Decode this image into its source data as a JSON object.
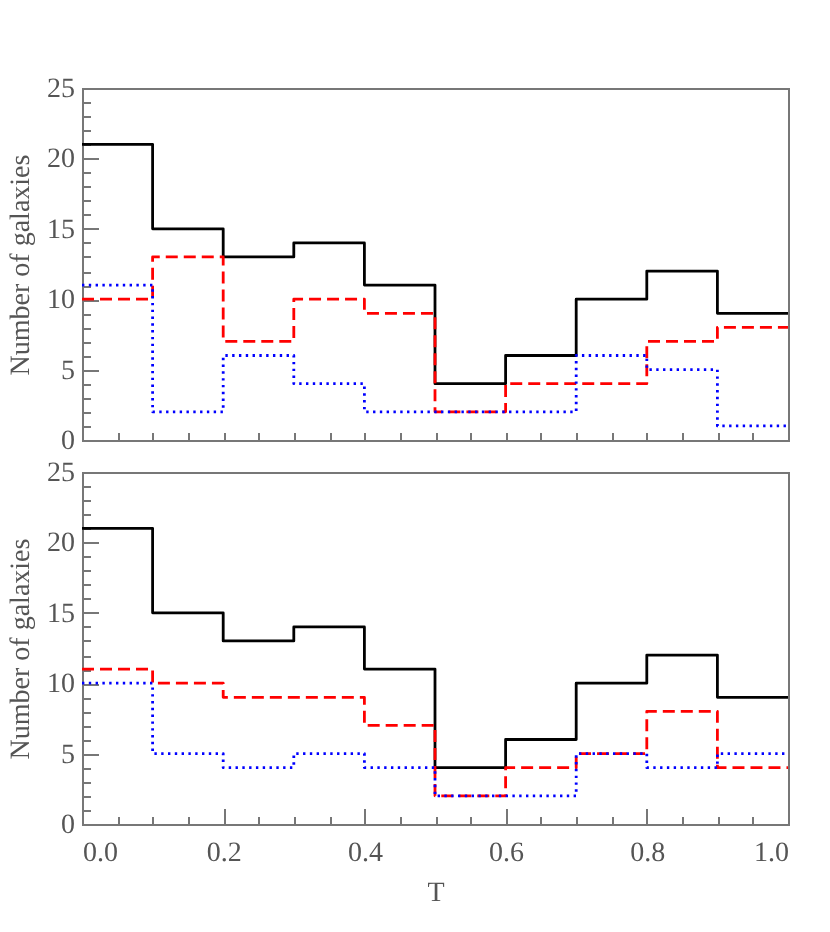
{
  "chart_data": [
    {
      "type": "histogram",
      "ylabel": "Number of galaxies",
      "bins": [
        0,
        0.1,
        0.2,
        0.3,
        0.4,
        0.5,
        0.6,
        0.7,
        0.8,
        0.9,
        1.0
      ],
      "series": [
        {
          "color": "#000000",
          "line_style": "solid",
          "values": [
            21,
            15,
            13,
            14,
            11,
            4,
            6,
            10,
            12,
            9
          ]
        },
        {
          "color": "#ff0000",
          "line_style": "dashed",
          "values": [
            10,
            13,
            7,
            10,
            9,
            2,
            4,
            4,
            7,
            8
          ]
        },
        {
          "color": "#0000ff",
          "line_style": "dotted",
          "values": [
            11,
            2,
            6,
            4,
            2,
            2,
            2,
            6,
            5,
            1
          ]
        }
      ],
      "xlim": [
        0,
        1
      ],
      "ylim": [
        0,
        25
      ],
      "xticks": [
        {
          "value": 0,
          "label": null
        },
        {
          "value": 0.05,
          "label": null
        },
        {
          "value": 0.1,
          "label": null
        },
        {
          "value": 0.15,
          "label": null
        },
        {
          "value": 0.2,
          "label": null
        },
        {
          "value": 0.25,
          "label": null
        },
        {
          "value": 0.3,
          "label": null
        },
        {
          "value": 0.35,
          "label": null
        },
        {
          "value": 0.4,
          "label": null
        },
        {
          "value": 0.45,
          "label": null
        },
        {
          "value": 0.5,
          "label": null
        },
        {
          "value": 0.55,
          "label": null
        },
        {
          "value": 0.6,
          "label": null
        },
        {
          "value": 0.65,
          "label": null
        },
        {
          "value": 0.7,
          "label": null
        },
        {
          "value": 0.75,
          "label": null
        },
        {
          "value": 0.8,
          "label": null
        },
        {
          "value": 0.85,
          "label": null
        },
        {
          "value": 0.9,
          "label": null
        },
        {
          "value": 0.95,
          "label": null
        },
        {
          "value": 1,
          "label": null
        }
      ],
      "yticks": [
        0,
        {
          "value": 1,
          "label": null
        },
        {
          "value": 2,
          "label": null
        },
        {
          "value": 3,
          "label": null
        },
        {
          "value": 4,
          "label": null
        },
        5,
        {
          "value": 6,
          "label": null
        },
        {
          "value": 7,
          "label": null
        },
        {
          "value": 8,
          "label": null
        },
        {
          "value": 9,
          "label": null
        },
        10,
        {
          "value": 11,
          "label": null
        },
        {
          "value": 12,
          "label": null
        },
        {
          "value": 13,
          "label": null
        },
        {
          "value": 14,
          "label": null
        },
        15,
        {
          "value": 16,
          "label": null
        },
        {
          "value": 17,
          "label": null
        },
        {
          "value": 18,
          "label": null
        },
        {
          "value": 19,
          "label": null
        },
        20,
        {
          "value": 21,
          "label": null
        },
        {
          "value": 22,
          "label": null
        },
        {
          "value": 23,
          "label": null
        },
        {
          "value": 24,
          "label": null
        },
        25
      ],
      "tick_labels": "y"
    },
    {
      "type": "histogram",
      "xlabel": "T",
      "ylabel": "Number of galaxies",
      "bins": [
        0,
        0.1,
        0.2,
        0.3,
        0.4,
        0.5,
        0.6,
        0.7,
        0.8,
        0.9,
        1.0
      ],
      "series": [
        {
          "color": "#000000",
          "line_style": "solid",
          "values": [
            21,
            15,
            13,
            14,
            11,
            4,
            6,
            10,
            12,
            9
          ]
        },
        {
          "color": "#ff0000",
          "line_style": "dashed",
          "values": [
            11,
            10,
            9,
            9,
            7,
            2,
            4,
            5,
            8,
            4
          ]
        },
        {
          "color": "#0000ff",
          "line_style": "dotted",
          "values": [
            10,
            5,
            4,
            5,
            4,
            2,
            2,
            5,
            4,
            5
          ]
        }
      ],
      "xlim": [
        0,
        1
      ],
      "ylim": [
        0,
        25
      ],
      "xticks": [
        {
          "value": 0,
          "label": "0.0"
        },
        {
          "value": 0.05,
          "label": null
        },
        {
          "value": 0.1,
          "label": null
        },
        {
          "value": 0.15,
          "label": null
        },
        {
          "value": 0.2,
          "label": "0.2"
        },
        {
          "value": 0.25,
          "label": null
        },
        {
          "value": 0.3,
          "label": null
        },
        {
          "value": 0.35,
          "label": null
        },
        {
          "value": 0.4,
          "label": "0.4"
        },
        {
          "value": 0.45,
          "label": null
        },
        {
          "value": 0.5,
          "label": null
        },
        {
          "value": 0.55,
          "label": null
        },
        {
          "value": 0.6,
          "label": "0.6"
        },
        {
          "value": 0.65,
          "label": null
        },
        {
          "value": 0.7,
          "label": null
        },
        {
          "value": 0.75,
          "label": null
        },
        {
          "value": 0.8,
          "label": "0.8"
        },
        {
          "value": 0.85,
          "label": null
        },
        {
          "value": 0.9,
          "label": null
        },
        {
          "value": 0.95,
          "label": null
        },
        {
          "value": 1,
          "label": "1.0"
        }
      ],
      "yticks": [
        0,
        {
          "value": 1,
          "label": null
        },
        {
          "value": 2,
          "label": null
        },
        {
          "value": 3,
          "label": null
        },
        {
          "value": 4,
          "label": null
        },
        5,
        {
          "value": 6,
          "label": null
        },
        {
          "value": 7,
          "label": null
        },
        {
          "value": 8,
          "label": null
        },
        {
          "value": 9,
          "label": null
        },
        10,
        {
          "value": 11,
          "label": null
        },
        {
          "value": 12,
          "label": null
        },
        {
          "value": 13,
          "label": null
        },
        {
          "value": 14,
          "label": null
        },
        15,
        {
          "value": 16,
          "label": null
        },
        {
          "value": 17,
          "label": null
        },
        {
          "value": 18,
          "label": null
        },
        {
          "value": 19,
          "label": null
        },
        20,
        {
          "value": 21,
          "label": null
        },
        {
          "value": 22,
          "label": null
        },
        {
          "value": 23,
          "label": null
        },
        {
          "value": 24,
          "label": null
        },
        25
      ]
    }
  ]
}
